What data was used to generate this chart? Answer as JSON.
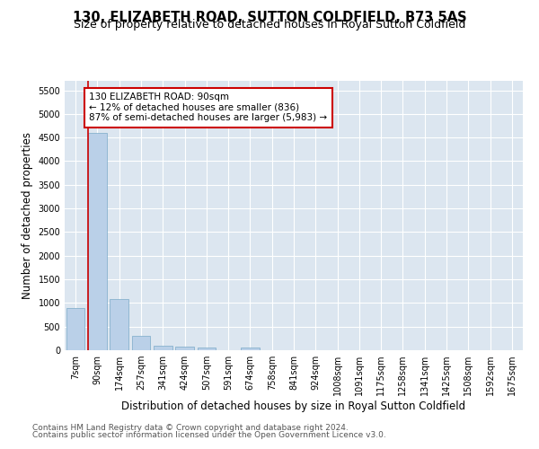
{
  "title": "130, ELIZABETH ROAD, SUTTON COLDFIELD, B73 5AS",
  "subtitle": "Size of property relative to detached houses in Royal Sutton Coldfield",
  "xlabel": "Distribution of detached houses by size in Royal Sutton Coldfield",
  "ylabel": "Number of detached properties",
  "footnote1": "Contains HM Land Registry data © Crown copyright and database right 2024.",
  "footnote2": "Contains public sector information licensed under the Open Government Licence v3.0.",
  "categories": [
    "7sqm",
    "90sqm",
    "174sqm",
    "257sqm",
    "341sqm",
    "424sqm",
    "507sqm",
    "591sqm",
    "674sqm",
    "758sqm",
    "841sqm",
    "924sqm",
    "1008sqm",
    "1091sqm",
    "1175sqm",
    "1258sqm",
    "1341sqm",
    "1425sqm",
    "1508sqm",
    "1592sqm",
    "1675sqm"
  ],
  "values": [
    900,
    4600,
    1075,
    300,
    90,
    75,
    50,
    0,
    50,
    0,
    0,
    0,
    0,
    0,
    0,
    0,
    0,
    0,
    0,
    0,
    0
  ],
  "bar_color": "#bad0e8",
  "bar_edge_color": "#7aaac8",
  "highlight_line_color": "#cc0000",
  "annotation_text": "130 ELIZABETH ROAD: 90sqm\n← 12% of detached houses are smaller (836)\n87% of semi-detached houses are larger (5,983) →",
  "annotation_box_color": "#cc0000",
  "ylim": [
    0,
    5700
  ],
  "yticks": [
    0,
    500,
    1000,
    1500,
    2000,
    2500,
    3000,
    3500,
    4000,
    4500,
    5000,
    5500
  ],
  "bg_color": "#dce6f0",
  "title_fontsize": 10.5,
  "subtitle_fontsize": 9,
  "axis_fontsize": 8.5,
  "tick_fontsize": 7,
  "footnote_fontsize": 6.5
}
